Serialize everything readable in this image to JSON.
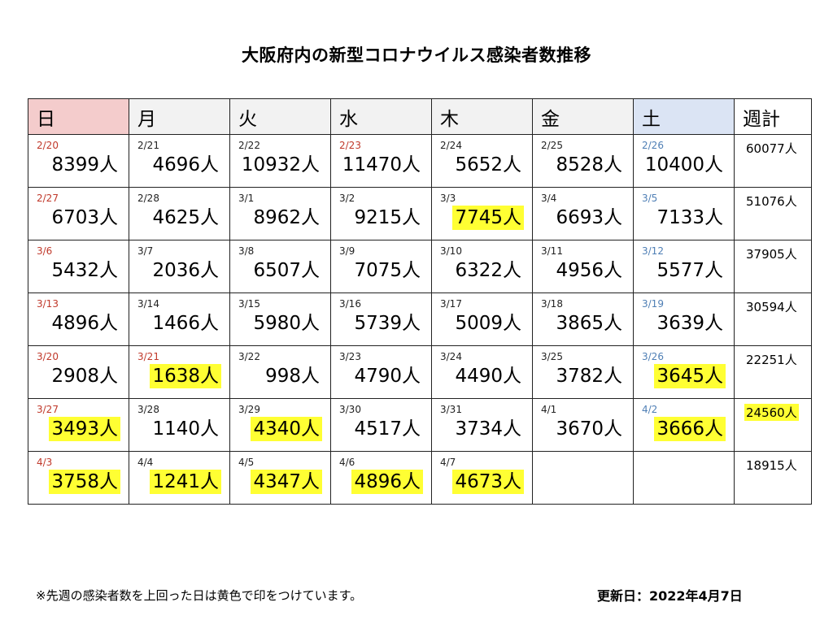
{
  "title": "大阪府内の新型コロナウイルス感染者数推移",
  "headers": [
    "日",
    "月",
    "火",
    "水",
    "木",
    "金",
    "土",
    "週計"
  ],
  "colors": {
    "sunday_header": "#f4cccc",
    "saturday_header": "#dbe4f4",
    "highlight": "#ffff33",
    "sunday_date": "#c0392b",
    "saturday_date": "#4f7fb5"
  },
  "weeks": [
    {
      "days": [
        {
          "date": "2/20",
          "count": "8399人",
          "hl": false,
          "dc": "red"
        },
        {
          "date": "2/21",
          "count": "4696人",
          "hl": false,
          "dc": ""
        },
        {
          "date": "2/22",
          "count": "10932人",
          "hl": false,
          "dc": ""
        },
        {
          "date": "2/23",
          "count": "11470人",
          "hl": false,
          "dc": "red"
        },
        {
          "date": "2/24",
          "count": "5652人",
          "hl": false,
          "dc": ""
        },
        {
          "date": "2/25",
          "count": "8528人",
          "hl": false,
          "dc": ""
        },
        {
          "date": "2/26",
          "count": "10400人",
          "hl": false,
          "dc": "blue"
        }
      ],
      "total": "60077人",
      "total_hl": false
    },
    {
      "days": [
        {
          "date": "2/27",
          "count": "6703人",
          "hl": false,
          "dc": "red"
        },
        {
          "date": "2/28",
          "count": "4625人",
          "hl": false,
          "dc": ""
        },
        {
          "date": "3/1",
          "count": "8962人",
          "hl": false,
          "dc": ""
        },
        {
          "date": "3/2",
          "count": "9215人",
          "hl": false,
          "dc": ""
        },
        {
          "date": "3/3",
          "count": "7745人",
          "hl": true,
          "dc": ""
        },
        {
          "date": "3/4",
          "count": "6693人",
          "hl": false,
          "dc": ""
        },
        {
          "date": "3/5",
          "count": "7133人",
          "hl": false,
          "dc": "blue"
        }
      ],
      "total": "51076人",
      "total_hl": false
    },
    {
      "days": [
        {
          "date": "3/6",
          "count": "5432人",
          "hl": false,
          "dc": "red"
        },
        {
          "date": "3/7",
          "count": "2036人",
          "hl": false,
          "dc": ""
        },
        {
          "date": "3/8",
          "count": "6507人",
          "hl": false,
          "dc": ""
        },
        {
          "date": "3/9",
          "count": "7075人",
          "hl": false,
          "dc": ""
        },
        {
          "date": "3/10",
          "count": "6322人",
          "hl": false,
          "dc": ""
        },
        {
          "date": "3/11",
          "count": "4956人",
          "hl": false,
          "dc": ""
        },
        {
          "date": "3/12",
          "count": "5577人",
          "hl": false,
          "dc": "blue"
        }
      ],
      "total": "37905人",
      "total_hl": false
    },
    {
      "days": [
        {
          "date": "3/13",
          "count": "4896人",
          "hl": false,
          "dc": "red"
        },
        {
          "date": "3/14",
          "count": "1466人",
          "hl": false,
          "dc": ""
        },
        {
          "date": "3/15",
          "count": "5980人",
          "hl": false,
          "dc": ""
        },
        {
          "date": "3/16",
          "count": "5739人",
          "hl": false,
          "dc": ""
        },
        {
          "date": "3/17",
          "count": "5009人",
          "hl": false,
          "dc": ""
        },
        {
          "date": "3/18",
          "count": "3865人",
          "hl": false,
          "dc": ""
        },
        {
          "date": "3/19",
          "count": "3639人",
          "hl": false,
          "dc": "blue"
        }
      ],
      "total": "30594人",
      "total_hl": false
    },
    {
      "days": [
        {
          "date": "3/20",
          "count": "2908人",
          "hl": false,
          "dc": "red"
        },
        {
          "date": "3/21",
          "count": "1638人",
          "hl": true,
          "dc": "red"
        },
        {
          "date": "3/22",
          "count": "998人",
          "hl": false,
          "dc": ""
        },
        {
          "date": "3/23",
          "count": "4790人",
          "hl": false,
          "dc": ""
        },
        {
          "date": "3/24",
          "count": "4490人",
          "hl": false,
          "dc": ""
        },
        {
          "date": "3/25",
          "count": "3782人",
          "hl": false,
          "dc": ""
        },
        {
          "date": "3/26",
          "count": "3645人",
          "hl": true,
          "dc": "blue"
        }
      ],
      "total": "22251人",
      "total_hl": false
    },
    {
      "days": [
        {
          "date": "3/27",
          "count": "3493人",
          "hl": true,
          "dc": "red"
        },
        {
          "date": "3/28",
          "count": "1140人",
          "hl": false,
          "dc": ""
        },
        {
          "date": "3/29",
          "count": "4340人",
          "hl": true,
          "dc": ""
        },
        {
          "date": "3/30",
          "count": "4517人",
          "hl": false,
          "dc": ""
        },
        {
          "date": "3/31",
          "count": "3734人",
          "hl": false,
          "dc": ""
        },
        {
          "date": "4/1",
          "count": "3670人",
          "hl": false,
          "dc": ""
        },
        {
          "date": "4/2",
          "count": "3666人",
          "hl": true,
          "dc": "blue"
        }
      ],
      "total": "24560人",
      "total_hl": true
    },
    {
      "days": [
        {
          "date": "4/3",
          "count": "3758人",
          "hl": true,
          "dc": "red"
        },
        {
          "date": "4/4",
          "count": "1241人",
          "hl": true,
          "dc": ""
        },
        {
          "date": "4/5",
          "count": "4347人",
          "hl": true,
          "dc": ""
        },
        {
          "date": "4/6",
          "count": "4896人",
          "hl": true,
          "dc": ""
        },
        {
          "date": "4/7",
          "count": "4673人",
          "hl": true,
          "dc": ""
        },
        {
          "date": "",
          "count": "",
          "hl": false,
          "dc": ""
        },
        {
          "date": "",
          "count": "",
          "hl": false,
          "dc": ""
        }
      ],
      "total": "18915人",
      "total_hl": false
    }
  ],
  "note": "※先週の感染者数を上回った日は黄色で印をつけています。",
  "updated": "更新日：2022年4月7日"
}
